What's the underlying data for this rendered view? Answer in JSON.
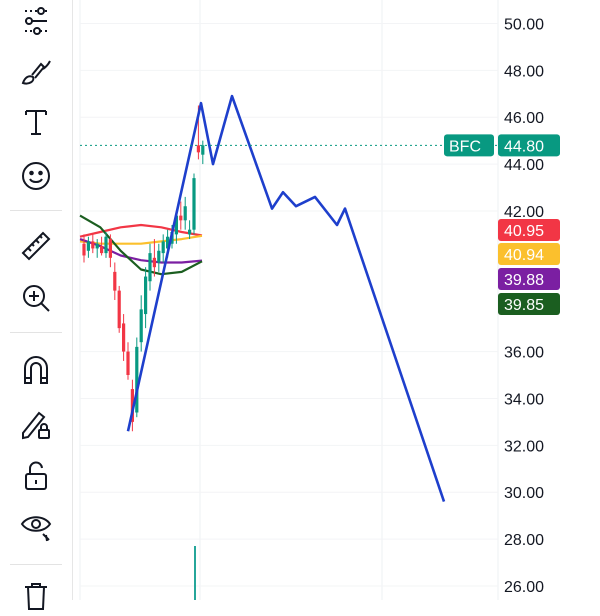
{
  "toolbar": {
    "tools": [
      {
        "name": "indicators-tool",
        "icon": "sliders-icon"
      },
      {
        "name": "brush-tool",
        "icon": "brush-icon"
      },
      {
        "name": "text-tool",
        "icon": "text-icon"
      },
      {
        "name": "emoji-tool",
        "icon": "smiley-icon"
      },
      {
        "name": "measure-tool",
        "icon": "ruler-icon"
      },
      {
        "name": "zoom-tool",
        "icon": "zoom-in-icon"
      },
      {
        "name": "magnet-tool",
        "icon": "magnet-icon"
      },
      {
        "name": "lock-drawing-tool",
        "icon": "pencil-lock-icon"
      },
      {
        "name": "lock-tool",
        "icon": "unlock-icon"
      },
      {
        "name": "hide-tool",
        "icon": "eye-icon"
      },
      {
        "name": "delete-tool",
        "icon": "trash-icon"
      }
    ]
  },
  "chart_data": {
    "type": "line",
    "y_axis": {
      "ticks": [
        "50.00",
        "48.00",
        "46.00",
        "44.00",
        "42.00",
        "36.00",
        "34.00",
        "32.00",
        "30.00",
        "28.00",
        "26.00"
      ],
      "range": [
        25.4,
        51
      ]
    },
    "current_price": {
      "symbol": "BFC",
      "value": "44.80",
      "color": "#089981"
    },
    "indicator_badges": [
      {
        "value": "40.95",
        "color": "#f23645"
      },
      {
        "value": "40.94",
        "color": "#fbc02d"
      },
      {
        "value": "39.88",
        "color": "#7b1fa2"
      },
      {
        "value": "39.85",
        "color": "#1b5e20"
      }
    ],
    "projection_line": {
      "color": "#1e3fcc",
      "values": [
        32.6,
        46.6,
        44.0,
        46.9,
        42.1,
        42.8,
        42.2,
        42.6,
        41.4,
        42.1,
        29.6
      ]
    },
    "indicator_lines": [
      {
        "color": "#f23645",
        "values": [
          40.9,
          41.1,
          41.3,
          41.4,
          41.3,
          41.1,
          40.95
        ]
      },
      {
        "color": "#fbc02d",
        "values": [
          40.7,
          40.6,
          40.6,
          40.6,
          40.7,
          40.8,
          40.94
        ]
      },
      {
        "color": "#7b1fa2",
        "values": [
          40.8,
          40.5,
          40.1,
          39.9,
          39.8,
          39.8,
          39.88
        ]
      },
      {
        "color": "#1b5e20",
        "values": [
          41.8,
          41.3,
          40.3,
          39.5,
          39.3,
          39.4,
          39.85
        ]
      }
    ],
    "candles": [
      {
        "o": 40.6,
        "h": 41.0,
        "l": 39.8,
        "c": 40.1
      },
      {
        "o": 40.3,
        "h": 40.9,
        "l": 40.0,
        "c": 40.7
      },
      {
        "o": 40.7,
        "h": 41.0,
        "l": 40.2,
        "c": 40.4
      },
      {
        "o": 40.4,
        "h": 40.8,
        "l": 40.0,
        "c": 40.6
      },
      {
        "o": 40.5,
        "h": 40.9,
        "l": 40.1,
        "c": 40.2
      },
      {
        "o": 40.2,
        "h": 41.1,
        "l": 40.0,
        "c": 40.9
      },
      {
        "o": 40.8,
        "h": 41.0,
        "l": 39.6,
        "c": 40.0
      },
      {
        "o": 39.4,
        "h": 39.8,
        "l": 38.2,
        "c": 38.6
      },
      {
        "o": 38.6,
        "h": 38.8,
        "l": 36.8,
        "c": 37.0
      },
      {
        "o": 37.2,
        "h": 37.6,
        "l": 35.6,
        "c": 36.0
      },
      {
        "o": 36.0,
        "h": 36.4,
        "l": 34.8,
        "c": 35.0
      },
      {
        "o": 34.4,
        "h": 34.8,
        "l": 32.6,
        "c": 33.0
      },
      {
        "o": 33.4,
        "h": 36.6,
        "l": 33.2,
        "c": 36.2
      },
      {
        "o": 36.4,
        "h": 38.4,
        "l": 36.0,
        "c": 37.8
      },
      {
        "o": 37.6,
        "h": 39.6,
        "l": 37.0,
        "c": 39.2
      },
      {
        "o": 39.0,
        "h": 40.6,
        "l": 38.6,
        "c": 40.2
      },
      {
        "o": 40.0,
        "h": 40.8,
        "l": 39.2,
        "c": 39.6
      },
      {
        "o": 39.8,
        "h": 40.6,
        "l": 39.4,
        "c": 40.3
      },
      {
        "o": 40.2,
        "h": 41.0,
        "l": 39.8,
        "c": 40.7
      },
      {
        "o": 40.4,
        "h": 41.2,
        "l": 40.0,
        "c": 40.9
      },
      {
        "o": 40.6,
        "h": 41.4,
        "l": 40.4,
        "c": 41.1
      },
      {
        "o": 41.0,
        "h": 42.0,
        "l": 40.6,
        "c": 41.8
      },
      {
        "o": 41.8,
        "h": 42.4,
        "l": 41.2,
        "c": 41.6
      },
      {
        "o": 41.6,
        "h": 42.6,
        "l": 41.2,
        "c": 42.2
      },
      {
        "o": 41.0,
        "h": 41.6,
        "l": 40.8,
        "c": 41.2
      },
      {
        "o": 41.2,
        "h": 43.6,
        "l": 41.0,
        "c": 43.4
      },
      {
        "o": 44.8,
        "h": 46.5,
        "l": 44.2,
        "c": 44.5
      },
      {
        "o": 44.4,
        "h": 45.0,
        "l": 44.0,
        "c": 44.8
      }
    ],
    "volume_bar": {
      "color": "#26a69a"
    }
  }
}
